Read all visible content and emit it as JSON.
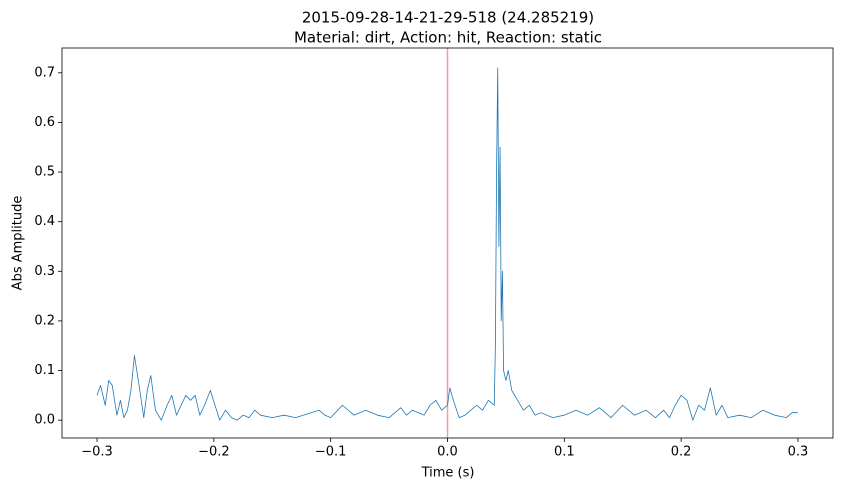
{
  "chart_data": {
    "type": "line",
    "title": "2015-09-28-14-21-29-518 (24.285219)",
    "subtitle": "Material: dirt, Action: hit, Reaction: static",
    "x_label": "Time (s)",
    "y_label": "Abs Amplitude",
    "x": [
      -0.3,
      -0.297,
      -0.293,
      -0.29,
      -0.287,
      -0.283,
      -0.28,
      -0.277,
      -0.274,
      -0.271,
      -0.268,
      -0.264,
      -0.26,
      -0.257,
      -0.254,
      -0.25,
      -0.245,
      -0.24,
      -0.236,
      -0.232,
      -0.228,
      -0.224,
      -0.22,
      -0.216,
      -0.212,
      -0.208,
      -0.203,
      -0.199,
      -0.195,
      -0.19,
      -0.185,
      -0.18,
      -0.175,
      -0.17,
      -0.165,
      -0.16,
      -0.15,
      -0.14,
      -0.13,
      -0.11,
      -0.105,
      -0.1,
      -0.09,
      -0.08,
      -0.07,
      -0.06,
      -0.05,
      -0.04,
      -0.035,
      -0.03,
      -0.02,
      -0.015,
      -0.01,
      -0.005,
      0,
      0.002,
      0.005,
      0.01,
      0.015,
      0.02,
      0.025,
      0.03,
      0.035,
      0.04,
      0.041,
      0.042,
      0.043,
      0.044,
      0.045,
      0.046,
      0.047,
      0.048,
      0.05,
      0.052,
      0.055,
      0.06,
      0.065,
      0.07,
      0.075,
      0.08,
      0.09,
      0.1,
      0.11,
      0.12,
      0.13,
      0.14,
      0.15,
      0.16,
      0.17,
      0.178,
      0.185,
      0.19,
      0.195,
      0.2,
      0.205,
      0.21,
      0.215,
      0.22,
      0.225,
      0.23,
      0.235,
      0.24,
      0.25,
      0.26,
      0.27,
      0.28,
      0.29,
      0.295,
      0.3
    ],
    "values": [
      0.05,
      0.07,
      0.03,
      0.08,
      0.07,
      0.01,
      0.04,
      0.005,
      0.02,
      0.06,
      0.13,
      0.07,
      0.005,
      0.06,
      0.09,
      0.02,
      0.0,
      0.03,
      0.05,
      0.01,
      0.03,
      0.05,
      0.04,
      0.05,
      0.01,
      0.03,
      0.06,
      0.03,
      0.0,
      0.02,
      0.005,
      0.0,
      0.01,
      0.005,
      0.02,
      0.01,
      0.005,
      0.01,
      0.005,
      0.02,
      0.01,
      0.005,
      0.03,
      0.01,
      0.02,
      0.01,
      0.005,
      0.025,
      0.01,
      0.02,
      0.01,
      0.03,
      0.04,
      0.02,
      0.03,
      0.065,
      0.04,
      0.005,
      0.01,
      0.02,
      0.03,
      0.02,
      0.04,
      0.03,
      0.15,
      0.5,
      0.71,
      0.35,
      0.55,
      0.2,
      0.3,
      0.1,
      0.08,
      0.1,
      0.06,
      0.04,
      0.02,
      0.03,
      0.01,
      0.015,
      0.005,
      0.01,
      0.02,
      0.01,
      0.025,
      0.005,
      0.03,
      0.01,
      0.02,
      0.005,
      0.02,
      0.005,
      0.03,
      0.05,
      0.04,
      0.0,
      0.03,
      0.02,
      0.065,
      0.01,
      0.03,
      0.005,
      0.01,
      0.005,
      0.02,
      0.01,
      0.005,
      0.015,
      0.015
    ],
    "color": "#1f77b4",
    "vline": {
      "value": 0,
      "color": "#ff9999"
    },
    "xlim": [
      -0.33,
      0.33
    ],
    "ylim": [
      -0.036,
      0.75
    ],
    "xticks": [
      {
        "value": -0.3,
        "label": "−0.3"
      },
      {
        "value": -0.2,
        "label": "−0.2"
      },
      {
        "value": -0.1,
        "label": "−0.1"
      },
      {
        "value": 0,
        "label": "0.0"
      },
      0.1,
      0.2,
      0.3
    ],
    "yticks": [
      {
        "value": 0,
        "label": "0.0"
      },
      0.1,
      0.2,
      0.3,
      0.4,
      0.5,
      0.6,
      0.7
    ]
  }
}
